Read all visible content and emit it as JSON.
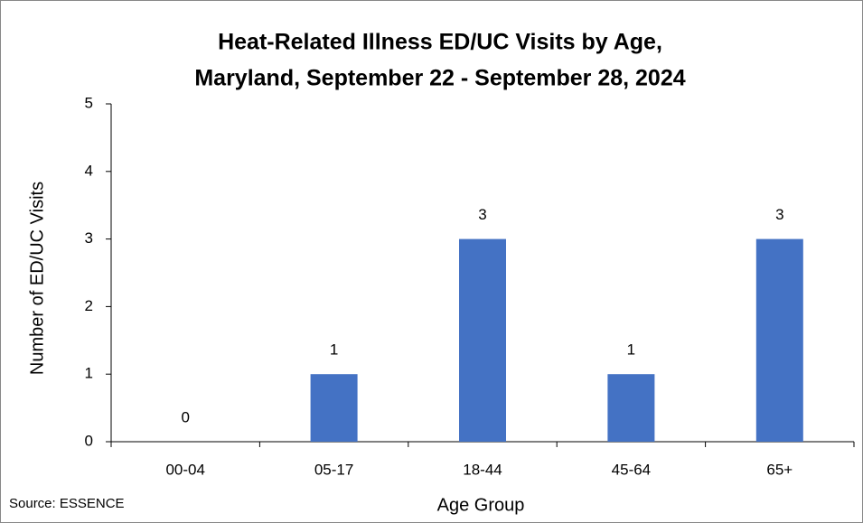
{
  "chart_data": {
    "type": "bar",
    "title": [
      "Heat-Related Illness ED/UC Visits by Age,",
      "Maryland, September 22 - September 28, 2024"
    ],
    "x_label": "Age Group",
    "y_label": "Number of ED/UC Visits",
    "source": "Source: ESSENCE",
    "categories": [
      "00-04",
      "05-17",
      "18-44",
      "45-64",
      "65+"
    ],
    "values": [
      0,
      1,
      3,
      1,
      3
    ],
    "color": "#4472c4",
    "ylim": [
      0,
      5
    ],
    "yticks": [
      0,
      1,
      2,
      3,
      4,
      5
    ],
    "grid": false,
    "data_labels": true
  }
}
